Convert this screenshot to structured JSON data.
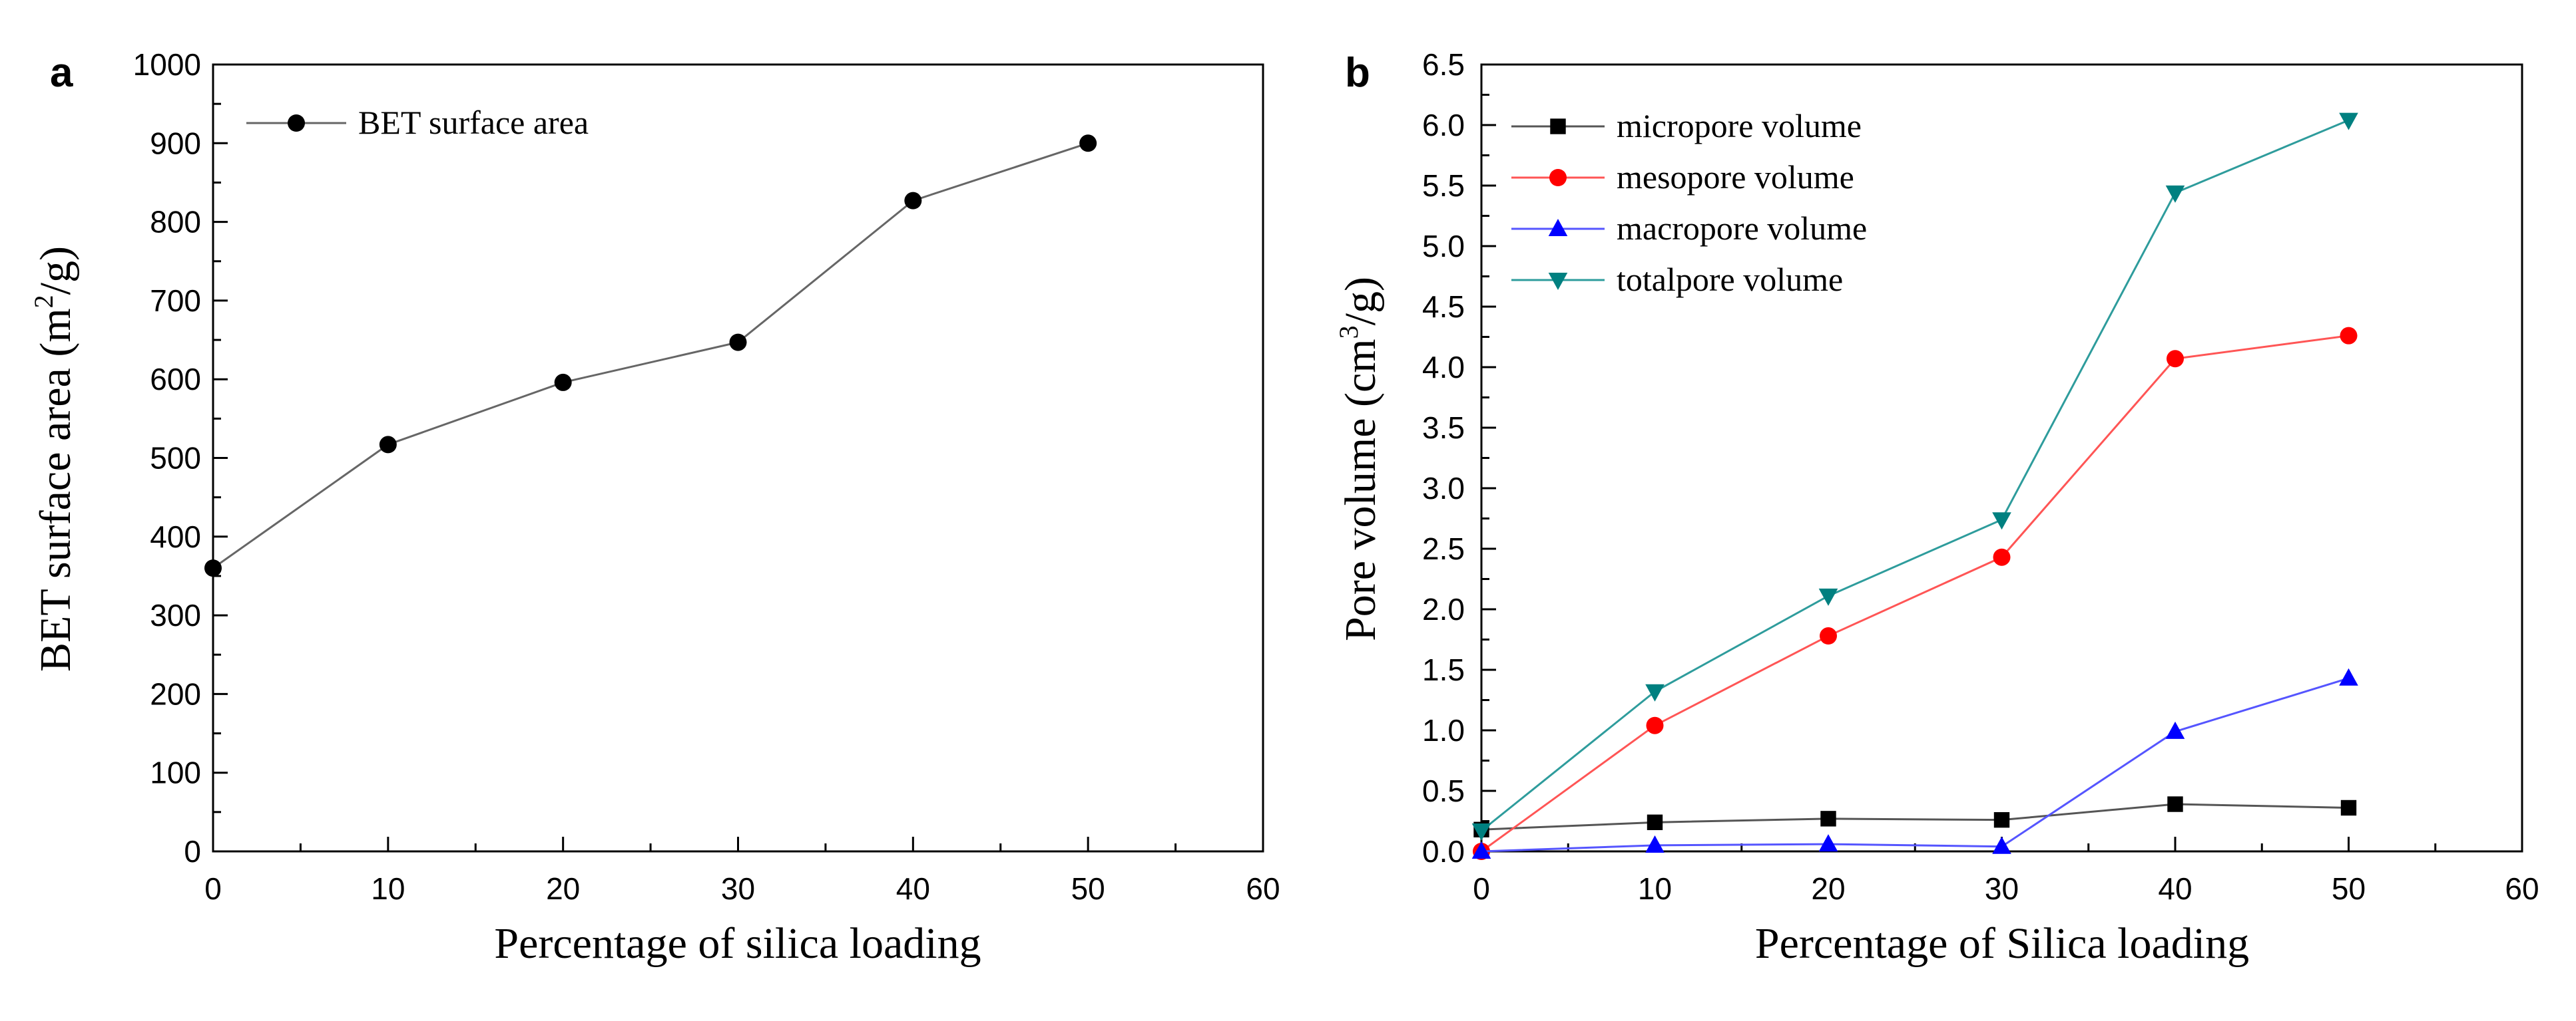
{
  "chart_data": [
    {
      "type": "line",
      "panel": "a",
      "x": [
        0,
        10,
        20,
        30,
        40,
        50
      ],
      "series": [
        {
          "name": "BET surface area",
          "values": [
            360,
            517,
            596,
            647,
            827,
            900
          ],
          "color": "#000000",
          "marker": "circle",
          "line_color": "#666666"
        }
      ],
      "xlabel": "Percentage of silica loading",
      "ylabel_main": "BET surface area (m",
      "ylabel_sup": "2",
      "ylabel_tail": "/g)",
      "xlim": [
        0,
        60
      ],
      "ylim": [
        0,
        1000
      ],
      "xticks": [
        "0",
        "10",
        "20",
        "30",
        "40",
        "50",
        "60"
      ],
      "yticks": [
        "0",
        "100",
        "200",
        "300",
        "400",
        "500",
        "600",
        "700",
        "800",
        "900",
        "1000"
      ],
      "legend_position": "top-left"
    },
    {
      "type": "line",
      "panel": "b",
      "x": [
        0,
        10,
        20,
        30,
        40,
        50
      ],
      "series": [
        {
          "name": "micropore volume",
          "values": [
            0.18,
            0.24,
            0.27,
            0.26,
            0.39,
            0.36
          ],
          "color": "#000000",
          "marker": "square",
          "line_color": "#555555"
        },
        {
          "name": "mesopore volume",
          "values": [
            0.0,
            1.04,
            1.78,
            2.43,
            4.07,
            4.26
          ],
          "color": "#ff0000",
          "marker": "circle",
          "line_color": "#ff5555"
        },
        {
          "name": "macropore volume",
          "values": [
            0.0,
            0.05,
            0.06,
            0.04,
            0.99,
            1.43
          ],
          "color": "#0000ff",
          "marker": "triangle-up",
          "line_color": "#5555ff"
        },
        {
          "name": "totalpore volume",
          "values": [
            0.17,
            1.32,
            2.11,
            2.74,
            5.44,
            6.04
          ],
          "color": "#008080",
          "marker": "triangle-down",
          "line_color": "#2e9c9c"
        }
      ],
      "xlabel": "Percentage of Silica loading",
      "ylabel_main": "Pore volume (cm",
      "ylabel_sup": "3",
      "ylabel_tail": "/g)",
      "xlim": [
        0,
        60
      ],
      "ylim": [
        0,
        6.5
      ],
      "xticks": [
        "0",
        "10",
        "20",
        "30",
        "40",
        "50",
        "60"
      ],
      "yticks": [
        "0.0",
        "0.5",
        "1.0",
        "1.5",
        "2.0",
        "2.5",
        "3.0",
        "3.5",
        "4.0",
        "4.5",
        "5.0",
        "5.5",
        "6.0",
        "6.5"
      ],
      "legend_position": "top-left"
    }
  ]
}
